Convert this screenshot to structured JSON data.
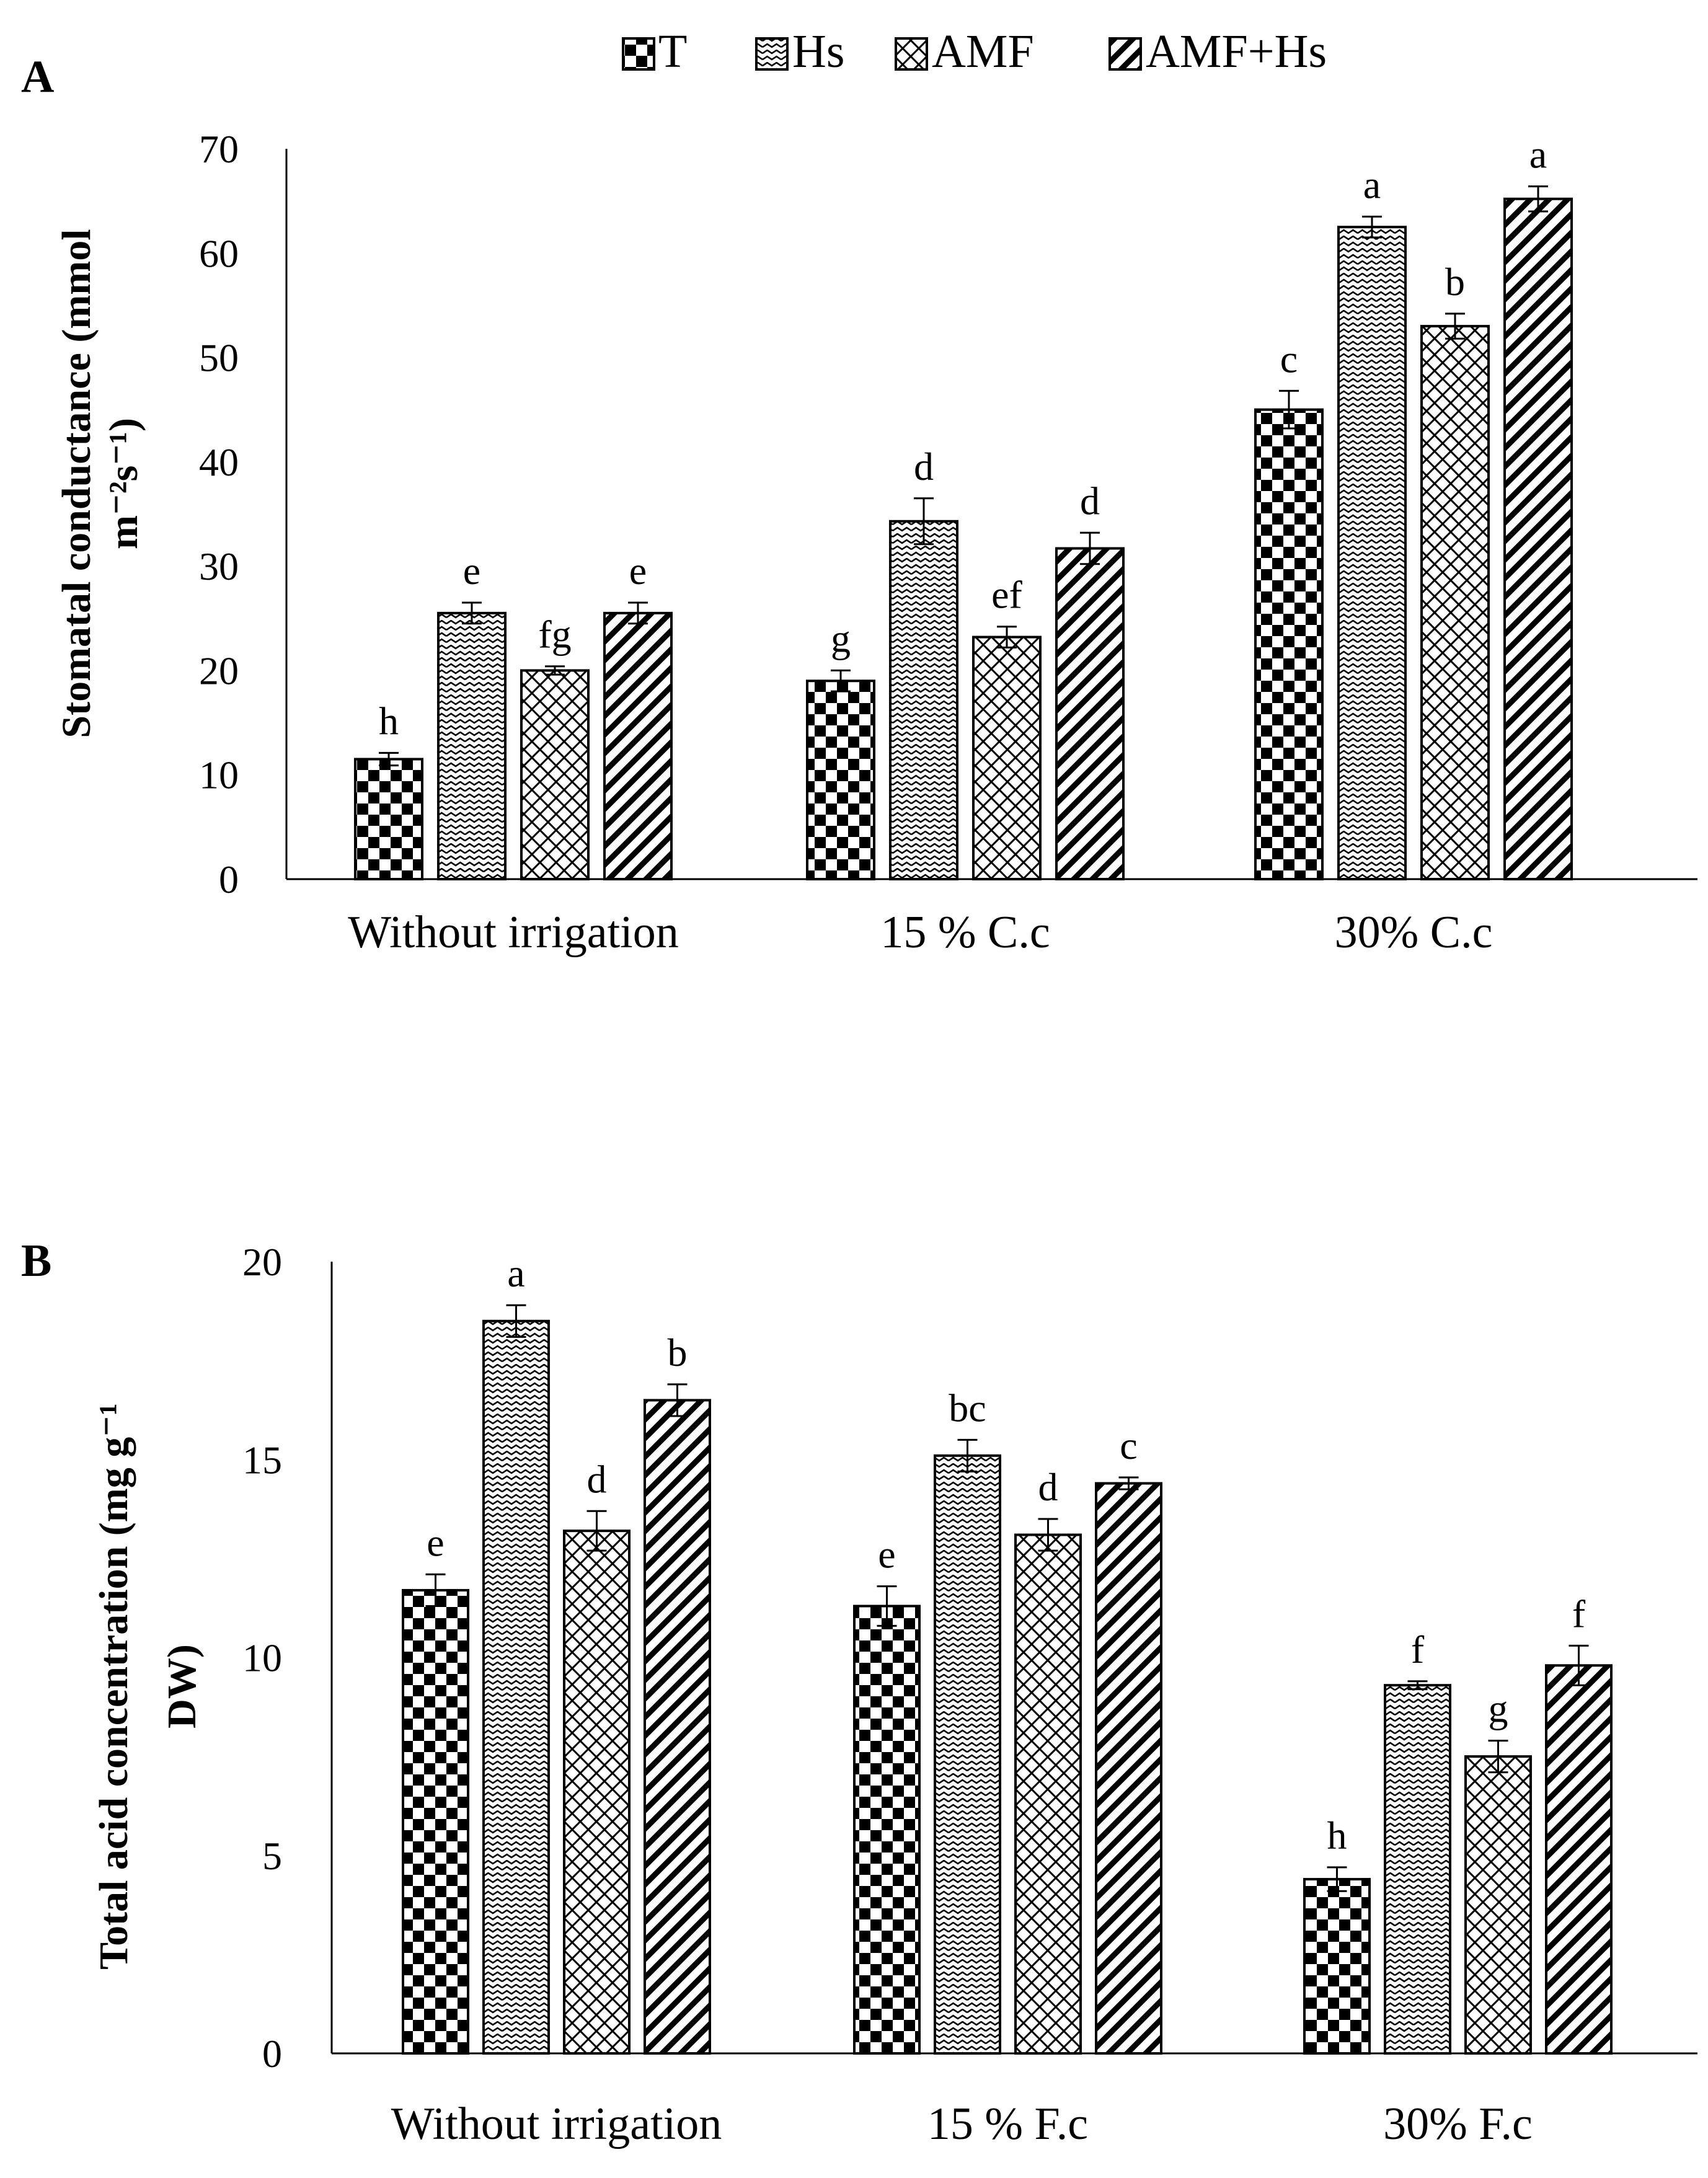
{
  "legend": {
    "items": [
      {
        "name": "T",
        "pattern": "checker"
      },
      {
        "name": "Hs",
        "pattern": "wave"
      },
      {
        "name": "AMF",
        "pattern": "crosshatch"
      },
      {
        "name": "AMF+Hs",
        "pattern": "diagonal"
      }
    ]
  },
  "chart_data": [
    {
      "type": "bar",
      "panel": "A",
      "categories": [
        "Without irrigation",
        "15 % C.c",
        "30% C.c"
      ],
      "series": [
        {
          "name": "T",
          "values": [
            11.5,
            19,
            45
          ],
          "errors": [
            0.6,
            1.0,
            1.8
          ],
          "letters": [
            "h",
            "g",
            "c"
          ]
        },
        {
          "name": "Hs",
          "values": [
            25.5,
            34.3,
            62.5
          ],
          "errors": [
            1.0,
            2.2,
            1.0
          ],
          "letters": [
            "e",
            "d",
            "a"
          ]
        },
        {
          "name": "AMF",
          "values": [
            20,
            23.2,
            53
          ],
          "errors": [
            0.4,
            1.0,
            1.2
          ],
          "letters": [
            "fg",
            "ef",
            "b"
          ]
        },
        {
          "name": "AMF+Hs",
          "values": [
            25.5,
            31.7,
            65.2
          ],
          "errors": [
            1.0,
            1.5,
            1.2
          ],
          "letters": [
            "e",
            "d",
            "a"
          ]
        }
      ],
      "ylabel_line1": "Stomatal  conductance  (mmol",
      "ylabel_line2": "m⁻²s⁻¹)",
      "ylim": [
        0,
        70
      ],
      "yticks": [
        0,
        10,
        20,
        30,
        40,
        50,
        60,
        70
      ],
      "grid": false
    },
    {
      "type": "bar",
      "panel": "B",
      "categories": [
        "Without irrigation",
        "15 % F.c",
        "30% F.c"
      ],
      "series": [
        {
          "name": "T",
          "values": [
            11.7,
            11.3,
            4.4
          ],
          "errors": [
            0.4,
            0.5,
            0.3
          ],
          "letters": [
            "e",
            "e",
            "h"
          ]
        },
        {
          "name": "Hs",
          "values": [
            18.5,
            15.1,
            9.3
          ],
          "errors": [
            0.4,
            0.4,
            0.1
          ],
          "letters": [
            "a",
            "bc",
            "f"
          ]
        },
        {
          "name": "AMF",
          "values": [
            13.2,
            13.1,
            7.5
          ],
          "errors": [
            0.5,
            0.4,
            0.4
          ],
          "letters": [
            "d",
            "d",
            "g"
          ]
        },
        {
          "name": "AMF+Hs",
          "values": [
            16.5,
            14.4,
            9.8
          ],
          "errors": [
            0.4,
            0.15,
            0.5
          ],
          "letters": [
            "b",
            "c",
            "f"
          ]
        }
      ],
      "ylabel_line1": "Total acid concentration  (mg g⁻¹",
      "ylabel_line2": "DW)",
      "ylim": [
        0,
        20
      ],
      "yticks": [
        0,
        5,
        10,
        15,
        20
      ],
      "grid": false
    }
  ]
}
